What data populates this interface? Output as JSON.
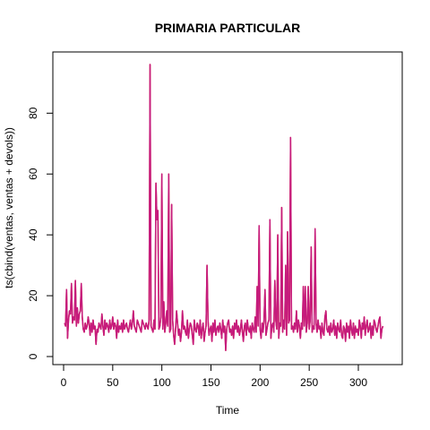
{
  "chart_data": {
    "type": "line",
    "title": "PRIMARIA PARTICULAR",
    "xlabel": "Time",
    "ylabel": "ts(cbind(ventas, ventas + devols))",
    "xlim": [
      0,
      340
    ],
    "ylim": [
      0,
      96
    ],
    "xticks": [
      0,
      50,
      100,
      150,
      200,
      250,
      300
    ],
    "yticks": [
      0,
      20,
      40,
      60,
      80
    ],
    "grid": false,
    "legend": "none",
    "series_colors": [
      "#e31a1c",
      "#c51b7d"
    ],
    "series": [
      {
        "values": [
          11,
          10,
          22,
          6,
          12,
          15,
          14,
          24,
          11,
          13,
          12,
          25,
          10,
          16,
          11,
          14,
          15,
          24,
          13,
          9,
          8,
          11,
          9,
          10,
          13,
          11,
          7,
          11,
          8,
          12,
          9,
          10,
          4,
          9,
          8,
          11,
          10,
          9,
          14,
          10,
          7,
          12,
          9,
          11,
          10,
          8,
          12,
          9,
          10,
          13,
          9,
          11,
          10,
          6,
          12,
          8,
          10,
          9,
          11,
          8,
          12,
          9,
          10,
          11,
          9,
          8,
          10,
          12,
          9,
          11,
          15,
          10,
          9,
          8,
          12,
          11,
          10,
          9,
          8,
          12,
          11,
          10,
          9,
          11,
          10,
          9,
          12,
          96,
          10,
          9,
          8,
          12,
          9,
          57,
          45,
          48,
          9,
          10,
          13,
          60,
          9,
          18,
          8,
          11,
          15,
          10,
          60,
          8,
          9,
          50,
          12,
          7,
          4,
          9,
          15,
          11,
          7,
          9,
          5,
          8,
          15,
          9,
          10,
          8,
          7,
          12,
          6,
          9,
          11,
          10,
          7,
          4,
          12,
          9,
          8,
          11,
          10,
          7,
          12,
          6,
          9,
          11,
          5,
          8,
          10,
          30,
          12,
          7,
          9,
          10,
          5,
          11,
          8,
          12,
          7,
          9,
          10,
          8,
          11,
          9,
          6,
          12,
          8,
          10,
          2,
          9,
          11,
          12,
          8,
          9,
          7,
          10,
          6,
          11,
          9,
          12,
          8,
          10,
          7,
          9,
          12,
          8,
          5,
          10,
          11,
          7,
          12,
          9,
          8,
          10,
          6,
          11,
          9,
          8,
          13,
          8,
          23,
          10,
          43,
          9,
          6,
          11,
          8,
          12,
          22,
          7,
          9,
          11,
          12,
          45,
          6,
          10,
          11,
          8,
          25,
          12,
          9,
          40,
          6,
          11,
          10,
          49,
          8,
          12,
          9,
          30,
          7,
          41,
          11,
          12,
          72,
          9,
          10,
          8,
          11,
          9,
          15,
          8,
          12,
          10,
          6,
          11,
          9,
          23,
          10,
          23,
          8,
          11,
          23,
          9,
          12,
          36,
          8,
          10,
          9,
          42,
          11,
          8,
          12,
          9,
          10,
          6,
          11,
          8,
          7,
          13,
          15,
          9,
          8,
          10,
          7,
          11,
          8,
          9,
          12,
          7,
          10,
          6,
          11,
          9,
          8,
          12,
          7,
          6,
          10,
          9,
          5,
          11,
          8,
          10,
          6,
          12,
          9,
          7,
          11,
          6,
          10,
          8,
          9,
          7,
          12,
          10,
          6,
          11,
          9,
          13,
          7,
          10,
          12,
          8,
          9,
          11,
          6,
          10,
          7,
          12,
          11,
          9,
          8,
          10,
          12,
          13,
          6,
          9,
          10
        ]
      },
      {
        "values": [
          11,
          10,
          22,
          6,
          12,
          15,
          14,
          24,
          11,
          13,
          12,
          25,
          10,
          16,
          11,
          14,
          15,
          24,
          13,
          9,
          8,
          11,
          9,
          10,
          13,
          11,
          7,
          11,
          8,
          12,
          9,
          10,
          4,
          9,
          8,
          11,
          10,
          9,
          14,
          10,
          7,
          12,
          9,
          11,
          10,
          8,
          12,
          9,
          10,
          13,
          9,
          11,
          10,
          6,
          12,
          8,
          10,
          9,
          11,
          8,
          12,
          9,
          10,
          11,
          9,
          8,
          10,
          12,
          9,
          11,
          15,
          10,
          9,
          8,
          12,
          11,
          10,
          9,
          8,
          12,
          11,
          10,
          9,
          11,
          10,
          9,
          12,
          96,
          10,
          9,
          8,
          12,
          9,
          57,
          45,
          48,
          9,
          10,
          13,
          60,
          9,
          18,
          8,
          11,
          15,
          10,
          60,
          8,
          9,
          50,
          12,
          7,
          4,
          9,
          15,
          11,
          7,
          9,
          5,
          8,
          15,
          9,
          10,
          8,
          7,
          12,
          6,
          9,
          11,
          10,
          7,
          4,
          12,
          9,
          8,
          11,
          10,
          7,
          12,
          6,
          9,
          11,
          5,
          8,
          10,
          30,
          12,
          7,
          9,
          10,
          5,
          11,
          8,
          12,
          7,
          9,
          10,
          8,
          11,
          9,
          6,
          12,
          8,
          10,
          2,
          9,
          11,
          12,
          8,
          9,
          7,
          10,
          6,
          11,
          9,
          12,
          8,
          10,
          7,
          9,
          12,
          8,
          5,
          10,
          11,
          7,
          12,
          9,
          8,
          10,
          6,
          11,
          9,
          8,
          13,
          8,
          23,
          10,
          43,
          9,
          6,
          11,
          8,
          12,
          22,
          7,
          9,
          11,
          12,
          45,
          6,
          10,
          11,
          8,
          25,
          12,
          9,
          40,
          6,
          11,
          10,
          49,
          8,
          12,
          9,
          30,
          7,
          41,
          11,
          12,
          72,
          9,
          10,
          8,
          11,
          9,
          15,
          8,
          12,
          10,
          6,
          11,
          9,
          23,
          10,
          23,
          8,
          11,
          23,
          9,
          12,
          36,
          8,
          10,
          9,
          42,
          11,
          8,
          12,
          9,
          10,
          6,
          11,
          8,
          7,
          13,
          15,
          9,
          8,
          10,
          7,
          11,
          8,
          9,
          12,
          7,
          10,
          6,
          11,
          9,
          8,
          12,
          7,
          6,
          10,
          9,
          5,
          11,
          8,
          10,
          6,
          12,
          9,
          7,
          11,
          6,
          10,
          8,
          9,
          7,
          12,
          10,
          6,
          11,
          9,
          13,
          7,
          10,
          12,
          8,
          9,
          11,
          6,
          10,
          7,
          12,
          11,
          9,
          8,
          10,
          12,
          13,
          6,
          9,
          10
        ]
      }
    ]
  }
}
